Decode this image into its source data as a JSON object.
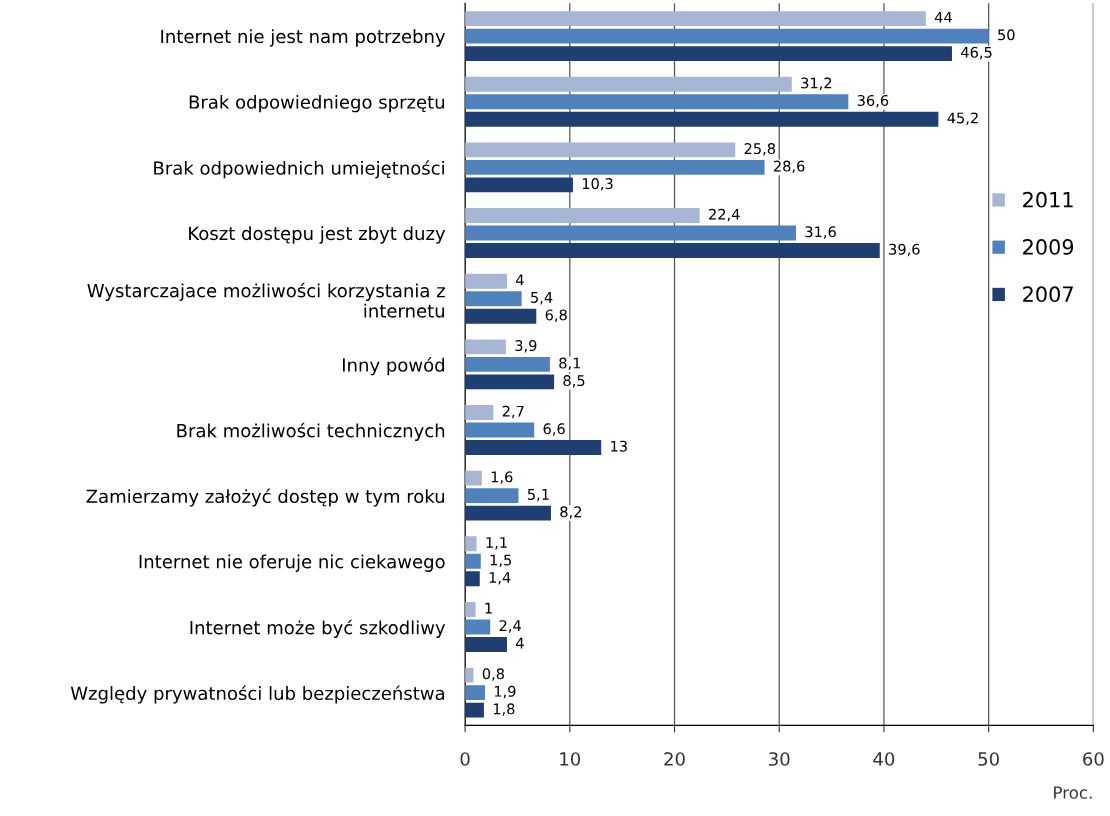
{
  "chart_data": {
    "type": "bar",
    "orientation": "horizontal",
    "xlabel": "Proc.",
    "categories": [
      "Internet nie jest nam potrzebny",
      "Brak odpowiedniego sprzętu",
      "Brak odpowiednich umiejętności",
      "Koszt dostępu jest zbyt duzy",
      "Wystarczajace możliwości korzystania z\ninternetu",
      "Inny powód",
      "Brak możliwości technicznych",
      "Zamierzamy założyć dostęp w tym roku",
      "Internet nie oferuje nic ciekawego",
      "Internet może być szkodliwy",
      "Względy prywatności lub bezpieczeństwa"
    ],
    "series": [
      {
        "name": "2011",
        "color": "#a6b6d4",
        "values": [
          44,
          31.2,
          25.8,
          22.4,
          4,
          3.9,
          2.7,
          1.6,
          1.1,
          1,
          0.8
        ],
        "value_labels": [
          "44",
          "31,2",
          "25,8",
          "22,4",
          "4",
          "3,9",
          "2,7",
          "1,6",
          "1,1",
          "1",
          "0,8"
        ]
      },
      {
        "name": "2009",
        "color": "#4f81bd",
        "values": [
          50,
          36.6,
          28.6,
          31.6,
          5.4,
          8.1,
          6.6,
          5.1,
          1.5,
          2.4,
          1.9
        ],
        "value_labels": [
          "50",
          "36,6",
          "28,6",
          "31,6",
          "5,4",
          "8,1",
          "6,6",
          "5,1",
          "1,5",
          "2,4",
          "1,9"
        ]
      },
      {
        "name": "2007",
        "color": "#1f3f73",
        "values": [
          46.5,
          45.2,
          10.3,
          39.6,
          6.8,
          8.5,
          13,
          8.2,
          1.4,
          4,
          1.8
        ],
        "value_labels": [
          "46,5",
          "45,2",
          "10,3",
          "39,6",
          "6,8",
          "8,5",
          "13",
          "8,2",
          "1,4",
          "4",
          "1,8"
        ]
      }
    ],
    "xlim": [
      0,
      60
    ],
    "xticks": [
      0,
      10,
      20,
      30,
      40,
      50,
      60
    ],
    "grid": "x",
    "legend": "right"
  }
}
